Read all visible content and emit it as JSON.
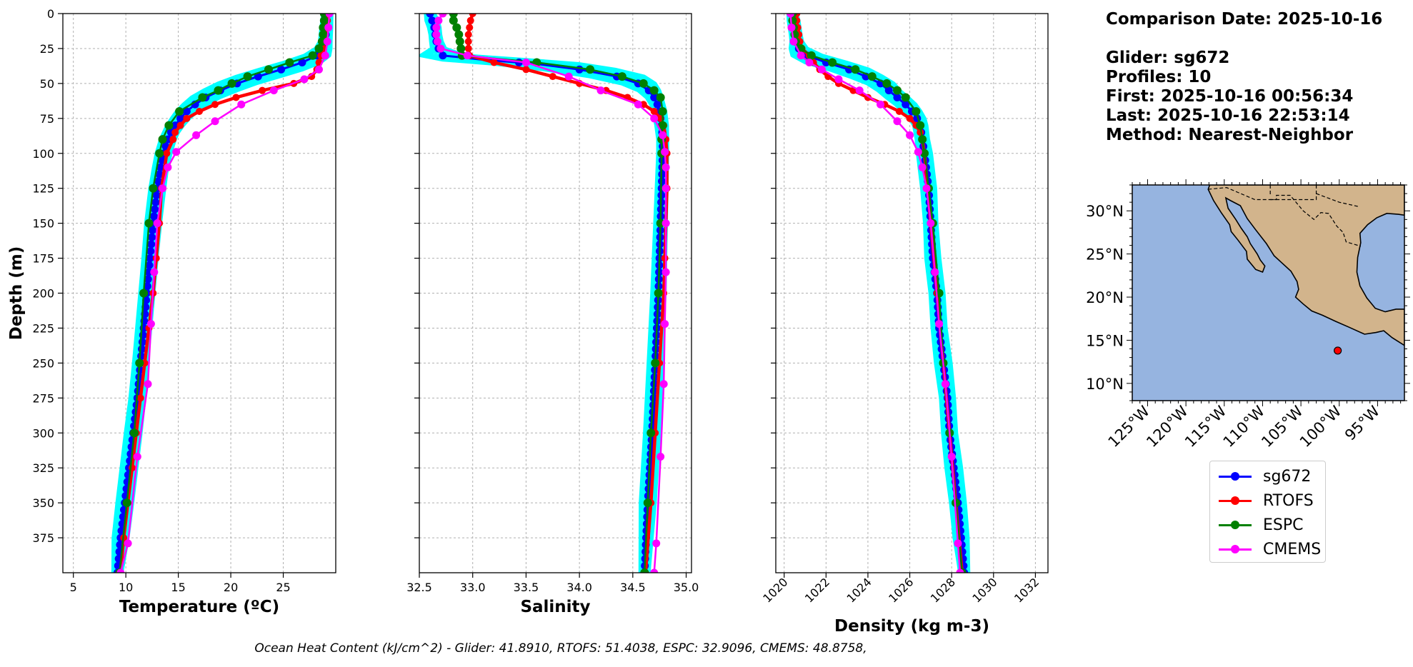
{
  "info": {
    "comparison": "Comparison Date: 2025-10-16",
    "glider": "Glider: sg672",
    "profiles": "Profiles: 10",
    "first": "First: 2025-10-16 00:56:34",
    "last": "Last: 2025-10-16 22:53:14",
    "method": "Method: Nearest-Neighbor"
  },
  "footer": "Ocean Heat Content (kJ/cm^2) - Glider: 41.8910,  RTOFS: 51.4038,  ESPC: 32.9096,  CMEMS: 48.8758,",
  "colors": {
    "glider": "#0000ff",
    "glider_profiles": "#00ffff",
    "rtofs": "#ff0000",
    "espc": "#008000",
    "cmems": "#ff00ff",
    "ocean": "#96b4e0",
    "land": "#d2b48c",
    "grid": "#b0b0b0"
  },
  "legend": [
    {
      "label": "sg672",
      "color": "#0000ff"
    },
    {
      "label": "RTOFS",
      "color": "#ff0000"
    },
    {
      "label": "ESPC",
      "color": "#008000"
    },
    {
      "label": "CMEMS",
      "color": "#ff00ff"
    }
  ],
  "chart_data": [
    {
      "type": "line",
      "title": "",
      "xlabel": "Temperature (ºC)",
      "ylabel": "Depth (m)",
      "xlim": [
        4,
        30
      ],
      "ylim": [
        400,
        0
      ],
      "xticks": [
        5,
        10,
        15,
        20,
        25
      ],
      "yticks": [
        0,
        25,
        50,
        75,
        100,
        125,
        150,
        175,
        200,
        225,
        250,
        275,
        300,
        325,
        350,
        375
      ],
      "tick_labels_rotated": false,
      "show_ylabels": true,
      "grid": true,
      "series": [
        {
          "name": "sg672",
          "key": "glider",
          "depth": [
            0,
            10,
            20,
            25,
            30,
            35,
            40,
            45,
            50,
            55,
            60,
            65,
            70,
            75,
            80,
            85,
            90,
            100,
            110,
            125,
            150,
            175,
            200,
            225,
            250,
            275,
            300,
            325,
            350,
            375,
            400
          ],
          "values": [
            29.2,
            29.1,
            29.0,
            28.8,
            28.2,
            26.8,
            24.8,
            22.6,
            20.6,
            19.0,
            17.6,
            16.6,
            15.8,
            15.2,
            14.7,
            14.3,
            14.0,
            13.6,
            13.3,
            13.0,
            12.6,
            12.3,
            12.0,
            11.7,
            11.4,
            11.1,
            10.7,
            10.3,
            9.9,
            9.5,
            9.2
          ]
        },
        {
          "name": "RTOFS",
          "key": "rtofs",
          "depth": [
            0,
            5,
            10,
            15,
            20,
            25,
            30,
            35,
            40,
            45,
            50,
            55,
            60,
            65,
            70,
            75,
            80,
            85,
            90,
            100,
            125,
            150,
            175,
            200,
            225,
            250,
            275,
            300,
            325,
            350,
            375,
            400
          ],
          "values": [
            29.3,
            29.2,
            29.1,
            29.0,
            28.9,
            28.8,
            28.6,
            28.4,
            28.2,
            27.7,
            26.0,
            23.0,
            20.5,
            18.5,
            17.0,
            15.8,
            15.2,
            14.7,
            14.5,
            13.9,
            13.4,
            13.2,
            12.9,
            12.6,
            12.2,
            11.8,
            11.4,
            11.0,
            10.6,
            10.2,
            9.8,
            9.5
          ]
        },
        {
          "name": "ESPC",
          "key": "espc",
          "depth": [
            0,
            5,
            10,
            15,
            20,
            25,
            30,
            35,
            40,
            45,
            50,
            55,
            60,
            70,
            80,
            90,
            100,
            125,
            150,
            200,
            250,
            300,
            350,
            400
          ],
          "values": [
            28.9,
            28.9,
            28.8,
            28.8,
            28.7,
            28.4,
            27.8,
            25.6,
            23.6,
            21.6,
            20.1,
            18.8,
            17.3,
            15.1,
            14.1,
            13.5,
            13.2,
            12.6,
            12.2,
            11.7,
            11.3,
            10.8,
            10.1,
            9.4
          ]
        },
        {
          "name": "CMEMS",
          "key": "cmems",
          "depth": [
            0,
            10,
            20,
            30,
            40,
            47,
            55,
            65,
            77,
            87,
            99,
            110,
            125,
            150,
            185,
            222,
            265,
            317,
            379,
            400
          ],
          "values": [
            29.4,
            29.3,
            29.2,
            29.0,
            28.4,
            27.0,
            24.1,
            21.0,
            18.5,
            16.7,
            14.8,
            14.0,
            13.5,
            13.0,
            12.7,
            12.4,
            12.1,
            11.1,
            10.2,
            9.5
          ]
        }
      ]
    },
    {
      "type": "line",
      "title": "",
      "xlabel": "Salinity",
      "ylabel": "",
      "xlim": [
        32.5,
        35.05
      ],
      "ylim": [
        400,
        0
      ],
      "xticks": [
        32.5,
        33.0,
        33.5,
        34.0,
        34.5,
        35.0
      ],
      "tick_labels_rotated": false,
      "show_ylabels": false,
      "grid": true,
      "series": [
        {
          "name": "sg672",
          "key": "glider",
          "depth": [
            0,
            5,
            10,
            15,
            20,
            25,
            30,
            33,
            36,
            40,
            45,
            50,
            55,
            60,
            65,
            70,
            80,
            90,
            100,
            125,
            150,
            200,
            250,
            300,
            350,
            400
          ],
          "values": [
            32.6,
            32.62,
            32.64,
            32.65,
            32.66,
            32.68,
            32.72,
            33.1,
            33.6,
            34.0,
            34.35,
            34.55,
            34.65,
            34.7,
            34.73,
            34.75,
            34.77,
            34.78,
            34.78,
            34.77,
            34.76,
            34.74,
            34.71,
            34.68,
            34.64,
            34.61
          ]
        },
        {
          "name": "RTOFS",
          "key": "rtofs",
          "depth": [
            0,
            5,
            10,
            15,
            20,
            25,
            30,
            35,
            40,
            45,
            50,
            55,
            60,
            65,
            70,
            75,
            80,
            90,
            100,
            125,
            150,
            175,
            200,
            250,
            300,
            350,
            400
          ],
          "values": [
            33.0,
            32.98,
            32.97,
            32.96,
            32.96,
            32.96,
            32.97,
            33.2,
            33.5,
            33.75,
            34.0,
            34.25,
            34.45,
            34.6,
            34.7,
            34.76,
            34.79,
            34.81,
            34.82,
            34.82,
            34.81,
            34.8,
            34.79,
            34.75,
            34.71,
            34.67,
            34.62
          ]
        },
        {
          "name": "ESPC",
          "key": "espc",
          "depth": [
            0,
            5,
            10,
            15,
            20,
            25,
            30,
            35,
            40,
            45,
            50,
            55,
            60,
            70,
            80,
            90,
            100,
            150,
            200,
            250,
            300,
            350,
            400
          ],
          "values": [
            32.82,
            32.82,
            32.85,
            32.87,
            32.88,
            32.89,
            32.9,
            33.6,
            34.1,
            34.4,
            34.6,
            34.7,
            34.76,
            34.78,
            34.78,
            34.77,
            34.77,
            34.76,
            34.74,
            34.71,
            34.67,
            34.64,
            34.61
          ]
        },
        {
          "name": "CMEMS",
          "key": "cmems",
          "depth": [
            0,
            5,
            10,
            15,
            20,
            25,
            30,
            35,
            45,
            55,
            65,
            75,
            87,
            99,
            110,
            125,
            150,
            185,
            222,
            265,
            317,
            379,
            400
          ],
          "values": [
            32.72,
            32.68,
            32.66,
            32.66,
            32.67,
            32.7,
            32.95,
            33.5,
            33.9,
            34.2,
            34.55,
            34.7,
            34.78,
            34.8,
            34.81,
            34.81,
            34.81,
            34.81,
            34.8,
            34.79,
            34.76,
            34.72,
            34.7
          ]
        }
      ]
    },
    {
      "type": "line",
      "title": "",
      "xlabel": "Density (kg m-3)",
      "ylabel": "",
      "xlim": [
        1019.6,
        1032.6
      ],
      "ylim": [
        400,
        0
      ],
      "xticks": [
        1020,
        1022,
        1024,
        1026,
        1028,
        1030,
        1032
      ],
      "tick_labels_rotated": true,
      "show_ylabels": false,
      "grid": true,
      "series": [
        {
          "name": "sg672",
          "key": "glider",
          "depth": [
            0,
            5,
            10,
            15,
            20,
            25,
            30,
            35,
            40,
            45,
            50,
            55,
            60,
            65,
            70,
            75,
            80,
            90,
            100,
            125,
            150,
            175,
            200,
            225,
            250,
            275,
            300,
            325,
            350,
            375,
            400
          ],
          "values": [
            1020.4,
            1020.45,
            1020.5,
            1020.55,
            1020.6,
            1020.7,
            1021.1,
            1022.0,
            1023.1,
            1023.9,
            1024.6,
            1025.0,
            1025.4,
            1025.8,
            1026.1,
            1026.35,
            1026.5,
            1026.6,
            1026.7,
            1026.9,
            1027.0,
            1027.1,
            1027.3,
            1027.4,
            1027.6,
            1027.8,
            1027.9,
            1028.1,
            1028.3,
            1028.45,
            1028.6
          ]
        },
        {
          "name": "RTOFS",
          "key": "rtofs",
          "depth": [
            0,
            5,
            10,
            15,
            20,
            25,
            30,
            35,
            40,
            45,
            50,
            55,
            60,
            65,
            70,
            75,
            80,
            85,
            90,
            100,
            125,
            150,
            200,
            250,
            300,
            350,
            400
          ],
          "values": [
            1020.6,
            1020.6,
            1020.65,
            1020.7,
            1020.75,
            1020.85,
            1021.2,
            1021.4,
            1021.7,
            1022.1,
            1022.6,
            1023.3,
            1024.0,
            1024.8,
            1025.5,
            1026.0,
            1026.3,
            1026.5,
            1026.6,
            1026.7,
            1026.85,
            1027.0,
            1027.3,
            1027.6,
            1027.9,
            1028.2,
            1028.5
          ]
        },
        {
          "name": "ESPC",
          "key": "espc",
          "depth": [
            0,
            5,
            10,
            15,
            20,
            25,
            30,
            35,
            40,
            45,
            50,
            55,
            60,
            70,
            80,
            90,
            100,
            125,
            150,
            200,
            250,
            300,
            350,
            400
          ],
          "values": [
            1020.4,
            1020.4,
            1020.45,
            1020.5,
            1020.55,
            1020.8,
            1021.3,
            1022.3,
            1023.4,
            1024.2,
            1024.9,
            1025.4,
            1025.8,
            1026.3,
            1026.5,
            1026.6,
            1026.7,
            1026.9,
            1027.1,
            1027.4,
            1027.6,
            1027.9,
            1028.2,
            1028.5
          ]
        },
        {
          "name": "CMEMS",
          "key": "cmems",
          "depth": [
            0,
            10,
            20,
            30,
            35,
            40,
            47,
            55,
            65,
            77,
            87,
            99,
            110,
            125,
            150,
            185,
            222,
            265,
            317,
            379,
            400
          ],
          "values": [
            1020.3,
            1020.35,
            1020.45,
            1020.8,
            1021.2,
            1021.8,
            1022.6,
            1023.6,
            1024.6,
            1025.4,
            1026.0,
            1026.4,
            1026.6,
            1026.8,
            1027.0,
            1027.2,
            1027.4,
            1027.7,
            1028.0,
            1028.3,
            1028.4
          ]
        }
      ]
    }
  ],
  "map": {
    "lon_range": [
      -127,
      -91.5
    ],
    "lat_range": [
      8,
      33
    ],
    "lat_ticks": [
      {
        "v": 30,
        "label": "30°N"
      },
      {
        "v": 25,
        "label": "25°N"
      },
      {
        "v": 20,
        "label": "20°N"
      },
      {
        "v": 15,
        "label": "15°N"
      },
      {
        "v": 10,
        "label": "10°N"
      }
    ],
    "lon_ticks": [
      {
        "v": -125,
        "label": "125°W"
      },
      {
        "v": -120,
        "label": "120°W"
      },
      {
        "v": -115,
        "label": "115°W"
      },
      {
        "v": -110,
        "label": "110°W"
      },
      {
        "v": -105,
        "label": "105°W"
      },
      {
        "v": -100,
        "label": "100°W"
      },
      {
        "v": -95,
        "label": "95°W"
      }
    ],
    "glider_position": {
      "lon": -100.2,
      "lat": 13.8
    },
    "coastline": [
      [
        -116.9,
        33
      ],
      [
        -117.1,
        32.5
      ],
      [
        -116.4,
        31.2
      ],
      [
        -115.4,
        29.8
      ],
      [
        -114.3,
        28.4
      ],
      [
        -114.1,
        27.6
      ],
      [
        -113.2,
        26.6
      ],
      [
        -112.1,
        25.3
      ],
      [
        -112.0,
        24.4
      ],
      [
        -110.9,
        23.2
      ],
      [
        -110.0,
        22.9
      ],
      [
        -109.7,
        23.6
      ],
      [
        -110.3,
        24.3
      ],
      [
        -110.7,
        25.0
      ],
      [
        -111.6,
        26.2
      ],
      [
        -112.0,
        27.0
      ],
      [
        -112.8,
        28.0
      ],
      [
        -113.5,
        29.0
      ],
      [
        -114.5,
        30.3
      ],
      [
        -114.8,
        31.5
      ],
      [
        -114.2,
        31.2
      ],
      [
        -112.9,
        30.6
      ],
      [
        -112.0,
        29.1
      ],
      [
        -110.9,
        27.8
      ],
      [
        -109.5,
        26.2
      ],
      [
        -108.5,
        24.8
      ],
      [
        -107.4,
        23.9
      ],
      [
        -106.3,
        23.0
      ],
      [
        -105.5,
        21.8
      ],
      [
        -105.3,
        20.9
      ],
      [
        -105.7,
        20.0
      ],
      [
        -104.7,
        19.2
      ],
      [
        -103.6,
        18.4
      ],
      [
        -102.2,
        17.9
      ],
      [
        -100.5,
        17.2
      ],
      [
        -98.7,
        16.5
      ],
      [
        -96.7,
        15.7
      ],
      [
        -95.2,
        15.9
      ],
      [
        -94.2,
        16.1
      ],
      [
        -93.1,
        15.3
      ],
      [
        -91.5,
        14.4
      ],
      [
        -91.5,
        18.6
      ],
      [
        -92.6,
        18.6
      ],
      [
        -94.0,
        18.3
      ],
      [
        -95.3,
        18.7
      ],
      [
        -96.4,
        19.9
      ],
      [
        -97.3,
        21.3
      ],
      [
        -97.7,
        22.9
      ],
      [
        -97.6,
        24.6
      ],
      [
        -97.2,
        26.3
      ],
      [
        -97.3,
        27.4
      ],
      [
        -96.3,
        28.4
      ],
      [
        -95.1,
        29.2
      ],
      [
        -93.8,
        29.7
      ],
      [
        -92.3,
        29.6
      ],
      [
        -91.5,
        29.5
      ],
      [
        -91.5,
        33
      ],
      [
        -116.9,
        33
      ]
    ],
    "borders": [
      [
        [
          -117.1,
          32.5
        ],
        [
          -114.7,
          32.7
        ],
        [
          -111.0,
          31.3
        ],
        [
          -108.2,
          31.3
        ],
        [
          -108.2,
          31.8
        ],
        [
          -106.4,
          31.8
        ],
        [
          -104.7,
          30.0
        ],
        [
          -103.3,
          29.0
        ],
        [
          -102.4,
          29.8
        ],
        [
          -101.4,
          29.7
        ],
        [
          -100.3,
          28.2
        ],
        [
          -99.5,
          27.5
        ],
        [
          -99.1,
          26.4
        ],
        [
          -97.2,
          25.9
        ]
      ]
    ],
    "dashed_borders": [
      [
        [
          -109.0,
          33.0
        ],
        [
          -109.0,
          31.8
        ]
      ],
      [
        [
          -109.0,
          31.3
        ],
        [
          -103.0,
          31.3
        ],
        [
          -103.0,
          33
        ]
      ],
      [
        [
          -103.0,
          32.0
        ],
        [
          -100.0,
          31.0
        ],
        [
          -97.5,
          30.5
        ]
      ]
    ]
  }
}
